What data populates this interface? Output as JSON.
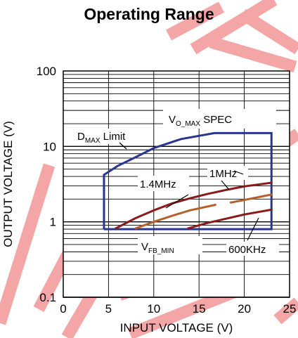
{
  "colors": {
    "watermark": "#f4a6a6",
    "operating_region": "#283593",
    "curve_1_4MHz": "#8b1a1a",
    "curve_1MHz": "#b5602c",
    "curve_600KHz": "#8b1a1a",
    "text": "#000000"
  },
  "chart_data": {
    "type": "line",
    "title": "Operating Range",
    "xlabel": "INPUT VOLTAGE (V)",
    "ylabel": "OUTPUT VOLTAGE (V)",
    "xlim": [
      0,
      25
    ],
    "ylim": [
      0.1,
      100
    ],
    "yscale": "log",
    "grid": true,
    "xticks": [
      0,
      5,
      10,
      15,
      20,
      25
    ],
    "xtick_labels": [
      "0",
      "5",
      "10",
      "15",
      "20",
      "25"
    ],
    "yticks": [
      0.1,
      1,
      10,
      100
    ],
    "ytick_labels": [
      "0.1",
      "1",
      "10",
      "100"
    ],
    "series": [
      {
        "name": "1.4MHz",
        "color": "#8b1a1a",
        "x": [
          5.8,
          8,
          10,
          12,
          14,
          16,
          18,
          20,
          23
        ],
        "y": [
          0.82,
          1.12,
          1.42,
          1.75,
          2.05,
          2.35,
          2.65,
          2.95,
          3.3
        ]
      },
      {
        "name": "1MHz",
        "color": "#b5602c",
        "x": [
          8,
          10,
          12,
          14,
          16.8
        ],
        "y": [
          0.82,
          1.0,
          1.2,
          1.42,
          1.68
        ]
      },
      {
        "name": "1MHz",
        "color": "#b5602c",
        "x": [
          18.5,
          20,
          23
        ],
        "y": [
          1.8,
          1.95,
          2.3
        ]
      },
      {
        "name": "600KHz",
        "color": "#8b1a1a",
        "x": [
          13.8,
          16,
          18,
          20,
          23
        ],
        "y": [
          0.82,
          0.97,
          1.1,
          1.25,
          1.45
        ]
      }
    ],
    "region": {
      "x": [
        4.5,
        4.5,
        6,
        8,
        10,
        13,
        16.7,
        23,
        23,
        4.5
      ],
      "y": [
        0.8,
        4.2,
        5.5,
        7.2,
        9.5,
        12.5,
        15,
        15,
        0.8,
        0.8
      ]
    },
    "annotations": [
      {
        "text": "D",
        "sub": "MAX",
        "after": " Limit"
      },
      {
        "text": "V",
        "sub": "O_MAX",
        "after": " SPEC"
      },
      {
        "text": "1.4MHz",
        "sub": "",
        "after": ""
      },
      {
        "text": "1MHz",
        "sub": "",
        "after": ""
      },
      {
        "text": "V",
        "sub": "FB_MIN",
        "after": ""
      },
      {
        "text": "600KHz",
        "sub": "",
        "after": ""
      }
    ]
  }
}
